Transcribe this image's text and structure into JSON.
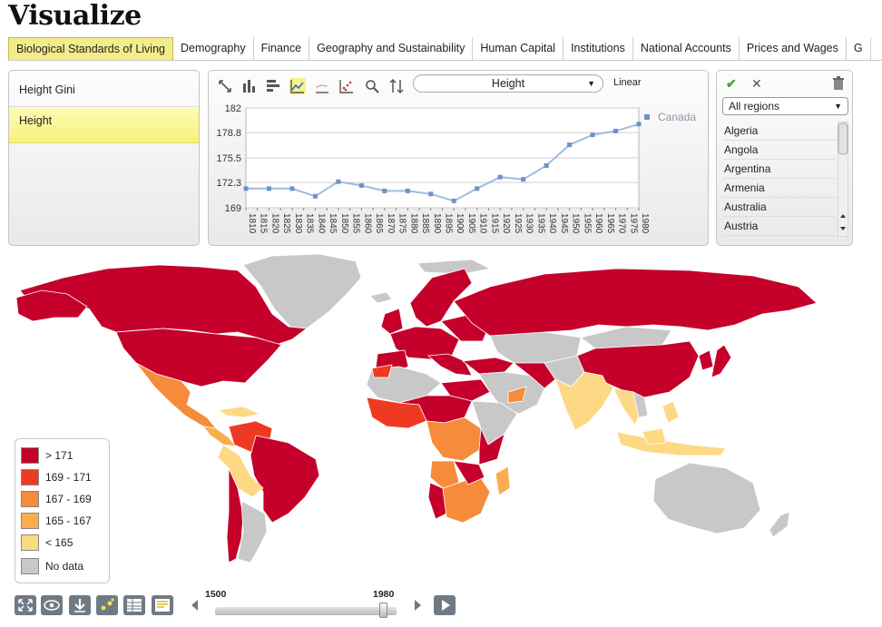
{
  "app": {
    "title": "Visualize"
  },
  "tabs": [
    {
      "label": "Biological Standards of Living",
      "active": true
    },
    {
      "label": "Demography"
    },
    {
      "label": "Finance"
    },
    {
      "label": "Geography and Sustainability"
    },
    {
      "label": "Human Capital"
    },
    {
      "label": "Institutions"
    },
    {
      "label": "National Accounts"
    },
    {
      "label": "Prices and Wages"
    },
    {
      "label": "G"
    }
  ],
  "indicators": [
    {
      "label": "Height Gini"
    },
    {
      "label": "Height",
      "selected": true
    }
  ],
  "chart_toolbar": {
    "icons": [
      "fit-icon",
      "bar-chart-icon",
      "horizontal-bar-icon",
      "line-chart-icon",
      "area-icon",
      "scatter-icon",
      "zoom-icon",
      "sort-icon"
    ],
    "active_icon": "line-chart-icon",
    "indicator_select": "Height",
    "scale": "Linear"
  },
  "chart_data": {
    "type": "line",
    "x": [
      1810,
      1815,
      1820,
      1825,
      1830,
      1835,
      1840,
      1845,
      1850,
      1855,
      1860,
      1865,
      1870,
      1875,
      1880,
      1885,
      1890,
      1895,
      1900,
      1905,
      1910,
      1915,
      1920,
      1925,
      1930,
      1935,
      1940,
      1945,
      1950,
      1955,
      1960,
      1965,
      1970,
      1975,
      1980
    ],
    "x_ticks": [
      1810,
      1815,
      1820,
      1825,
      1830,
      1835,
      1840,
      1845,
      1850,
      1855,
      1860,
      1865,
      1870,
      1875,
      1880,
      1885,
      1890,
      1895,
      1900,
      1905,
      1910,
      1915,
      1920,
      1925,
      1930,
      1935,
      1940,
      1945,
      1950,
      1955,
      1960,
      1965,
      1970,
      1975,
      1980
    ],
    "y_ticks": [
      169,
      172.3,
      175.5,
      178.8,
      182
    ],
    "ylim": [
      169,
      182
    ],
    "grid": true,
    "legend_position": "right",
    "series": [
      {
        "name": "Canada",
        "color": "#9dbde0",
        "marker_color": "#6b93c7",
        "points": [
          [
            1810,
            171.5
          ],
          [
            1820,
            171.5
          ],
          [
            1830,
            171.5
          ],
          [
            1840,
            170.5
          ],
          [
            1850,
            172.4
          ],
          [
            1860,
            171.9
          ],
          [
            1870,
            171.2
          ],
          [
            1880,
            171.2
          ],
          [
            1890,
            170.8
          ],
          [
            1900,
            169.9
          ],
          [
            1910,
            171.5
          ],
          [
            1920,
            173.0
          ],
          [
            1930,
            172.7
          ],
          [
            1940,
            174.5
          ],
          [
            1950,
            177.2
          ],
          [
            1960,
            178.5
          ],
          [
            1970,
            179.0
          ],
          [
            1980,
            179.9
          ]
        ]
      }
    ]
  },
  "region_panel": {
    "region_select": "All regions",
    "countries": [
      "Algeria",
      "Angola",
      "Argentina",
      "Armenia",
      "Australia",
      "Austria"
    ]
  },
  "map_legend": [
    {
      "label": "> 171",
      "color": "#c4002b"
    },
    {
      "label": "169 - 171",
      "color": "#ee3a22"
    },
    {
      "label": "167 - 169",
      "color": "#f58b3b"
    },
    {
      "label": "165 - 167",
      "color": "#fbad4f"
    },
    {
      "label": "< 165",
      "color": "#fdd985"
    },
    {
      "label": "No data",
      "color": "#c8c8c8"
    }
  ],
  "timeline": {
    "start": "1500",
    "end": "1980",
    "position": 0.9
  },
  "bottom_icons": [
    "fullscreen-icon",
    "eye-icon",
    "download-icon",
    "scatter-settings-icon",
    "table-icon",
    "notes-icon",
    "play-icon",
    "collapse-icon"
  ]
}
